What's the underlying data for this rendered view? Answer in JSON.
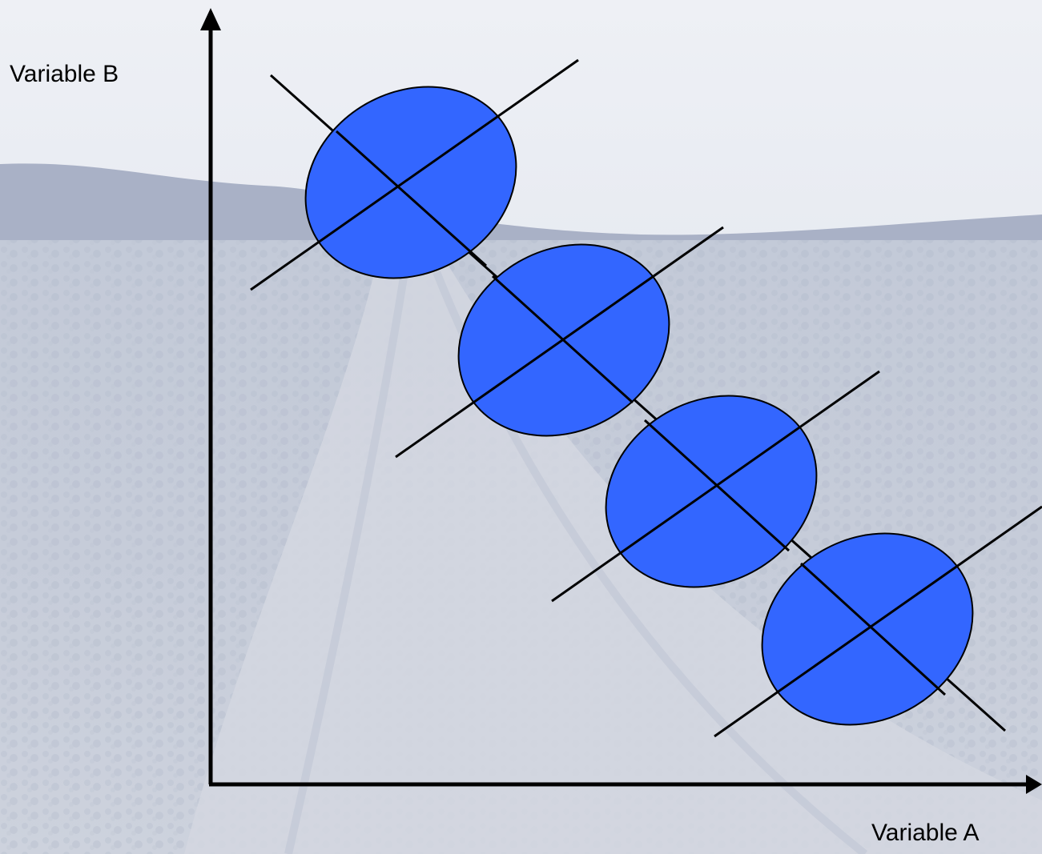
{
  "axes": {
    "x_label": "Variable A",
    "y_label": "Variable B"
  },
  "ellipses": [
    {
      "name": "ellipse-1"
    },
    {
      "name": "ellipse-2"
    },
    {
      "name": "ellipse-3"
    },
    {
      "name": "ellipse-4"
    }
  ],
  "colors": {
    "ellipse_fill": "#3366ff",
    "line": "#000000",
    "sky_top": "#e9ecf3",
    "ground": "#c7cdd9"
  },
  "background": "faded photograph of a dirt road through sagebrush under a pale sky"
}
